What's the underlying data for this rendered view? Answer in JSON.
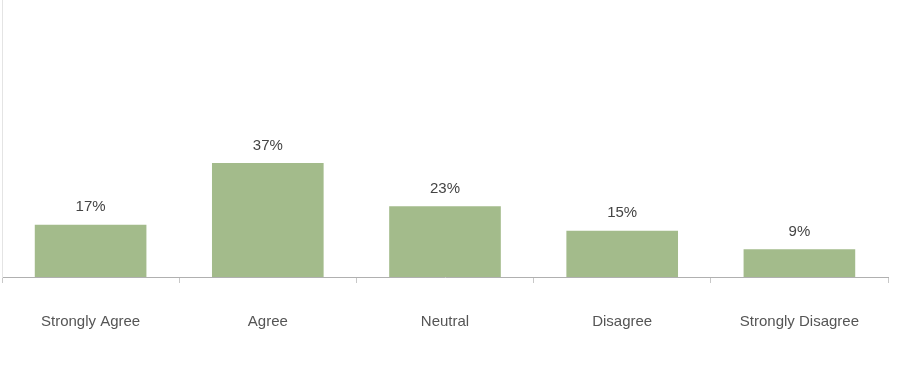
{
  "chart_data": {
    "type": "bar",
    "categories": [
      "Strongly Agree",
      "Agree",
      "Neutral",
      "Disagree",
      "Strongly Disagree"
    ],
    "values": [
      17,
      37,
      23,
      15,
      9
    ],
    "value_labels": [
      "17%",
      "37%",
      "23%",
      "15%",
      "9%"
    ],
    "data_labels": true,
    "color": "#a3bb8b",
    "ylim": [
      0,
      90
    ],
    "grid": false,
    "tick_labels": "x"
  }
}
